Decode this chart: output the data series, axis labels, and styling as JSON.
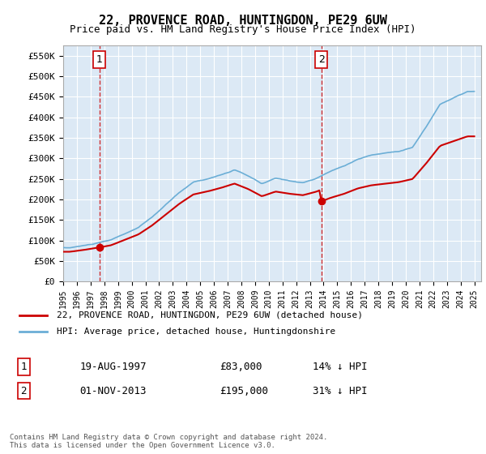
{
  "title": "22, PROVENCE ROAD, HUNTINGDON, PE29 6UW",
  "subtitle": "Price paid vs. HM Land Registry's House Price Index (HPI)",
  "background_color": "#dce9f5",
  "plot_bg_color": "#dce9f5",
  "ylim": [
    0,
    575000
  ],
  "yticks": [
    0,
    50000,
    100000,
    150000,
    200000,
    250000,
    300000,
    350000,
    400000,
    450000,
    500000,
    550000
  ],
  "ytick_labels": [
    "£0",
    "£50K",
    "£100K",
    "£150K",
    "£200K",
    "£250K",
    "£300K",
    "£350K",
    "£400K",
    "£450K",
    "£500K",
    "£550K"
  ],
  "sale1_date": 1997.64,
  "sale1_price": 83000,
  "sale1_label": "1",
  "sale2_date": 2013.84,
  "sale2_price": 195000,
  "sale2_label": "2",
  "hpi_color": "#6baed6",
  "price_color": "#cc0000",
  "vline_color": "#cc0000",
  "legend_label_price": "22, PROVENCE ROAD, HUNTINGDON, PE29 6UW (detached house)",
  "legend_label_hpi": "HPI: Average price, detached house, Huntingdonshire",
  "table_row1": [
    "1",
    "19-AUG-1997",
    "£83,000",
    "14% ↓ HPI"
  ],
  "table_row2": [
    "2",
    "01-NOV-2013",
    "£195,000",
    "31% ↓ HPI"
  ],
  "footer": "Contains HM Land Registry data © Crown copyright and database right 2024.\nThis data is licensed under the Open Government Licence v3.0.",
  "xmin": 1995.0,
  "xmax": 2025.5
}
